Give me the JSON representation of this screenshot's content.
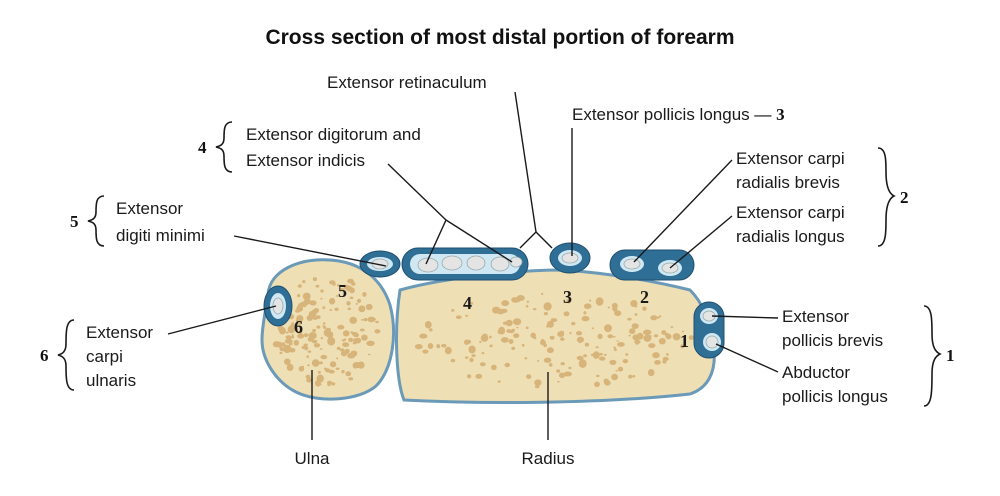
{
  "title": "Cross section of most distal portion of forearm",
  "labels": {
    "extensor_retinaculum": "Extensor retinaculum",
    "epl": "Extensor pollicis longus",
    "epl_dash": "—",
    "epl_num": "3",
    "ed_line1": "Extensor digitorum and",
    "ed_line2": "Extensor indicis",
    "ed_num": "4",
    "edm_line1": "Extensor",
    "edm_line2": "digiti minimi",
    "edm_num": "5",
    "ecrb_line1": "Extensor carpi",
    "ecrb_line2": "radialis brevis",
    "ecrl_line1": "Extensor carpi",
    "ecrl_line2": "radialis longus",
    "ecr_num": "2",
    "epb_line1": "Extensor",
    "epb_line2": "pollicis brevis",
    "apl_line1": "Abductor",
    "apl_line2": "pollicis longus",
    "thumb_num": "1",
    "ecu_line1": "Extensor",
    "ecu_line2": "carpi",
    "ecu_line3": "ulnaris",
    "ecu_num": "6",
    "ulna": "Ulna",
    "radius": "Radius"
  },
  "compartment_numbers": {
    "c5": "5",
    "c6": "6",
    "c4": "4",
    "c3": "3",
    "c2": "2",
    "c1": "1"
  },
  "colors": {
    "bone": "#efdfb4",
    "pore": "#d7b47a",
    "sheath": "#2f6f96",
    "sheath_inner": "#cfe8f4",
    "tendon": "#e4e4e4"
  }
}
